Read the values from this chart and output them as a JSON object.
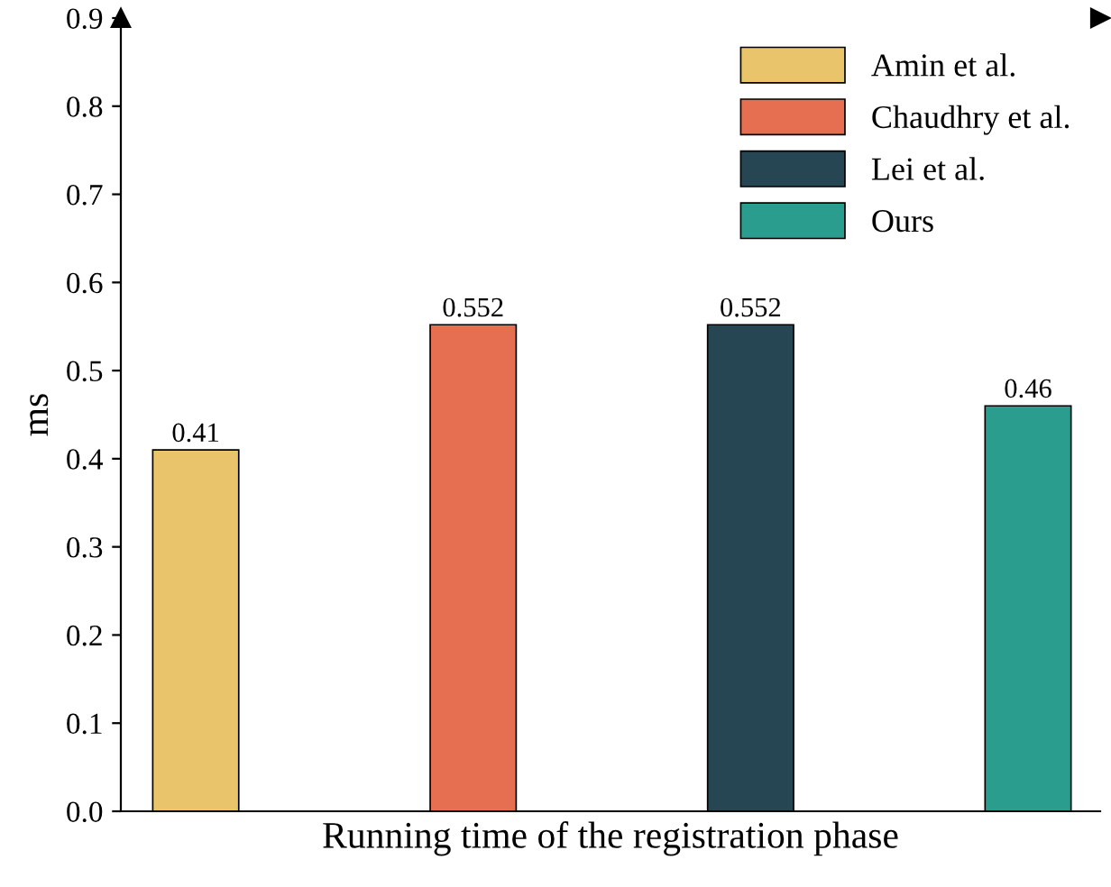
{
  "chart_data": {
    "type": "bar",
    "xlabel": "Running time of the registration phase",
    "ylabel": "ms",
    "categories": [
      null,
      null,
      null,
      null
    ],
    "series": [
      {
        "name": "Amin et al.",
        "color": "#e9c46a",
        "values": [
          0.41,
          null,
          null,
          null
        ]
      },
      {
        "name": "Chaudhry et al.",
        "color": "#e76f51",
        "values": [
          null,
          0.552,
          null,
          null
        ]
      },
      {
        "name": "Lei et al.",
        "color": "#264653",
        "values": [
          null,
          null,
          0.552,
          null
        ]
      },
      {
        "name": "Ours",
        "color": "#2a9d8f",
        "values": [
          null,
          null,
          null,
          0.46
        ]
      }
    ],
    "ylim": [
      0,
      0.9
    ],
    "yticks": [
      {
        "value": 0,
        "label": "0.0"
      },
      0.1,
      0.2,
      0.3,
      0.4,
      0.5,
      0.6,
      0.7,
      0.8,
      0.9
    ],
    "tick_labels": "y",
    "data_labels": true,
    "legend": "top right",
    "grid": false
  }
}
